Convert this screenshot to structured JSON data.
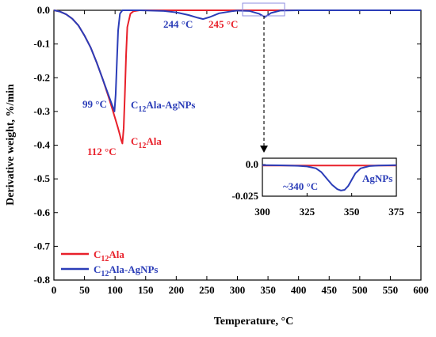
{
  "chart_data": {
    "type": "line",
    "xlabel": "Temperature, °C",
    "ylabel": "Derivative weight, %/min",
    "xlim": [
      0,
      600
    ],
    "ylim": [
      -0.8,
      0.0
    ],
    "xticks": [
      "0",
      "50",
      "100",
      "150",
      "200",
      "250",
      "300",
      "350",
      "400",
      "450",
      "500",
      "550",
      "600"
    ],
    "yticks": [
      "0.0",
      "-0.1",
      "-0.2",
      "-0.3",
      "-0.4",
      "-0.5",
      "-0.6",
      "-0.7",
      "-0.8"
    ],
    "series": [
      {
        "name": "C12Ala",
        "color": "#e8202a",
        "x": [
          0,
          10,
          20,
          30,
          40,
          50,
          60,
          70,
          80,
          90,
          95,
          100,
          105,
          108,
          110,
          112,
          114,
          116,
          118,
          120,
          125,
          130,
          140,
          160,
          200,
          245,
          300,
          400,
          500,
          600
        ],
        "y": [
          0.0,
          -0.004,
          -0.012,
          -0.025,
          -0.045,
          -0.075,
          -0.11,
          -0.155,
          -0.205,
          -0.26,
          -0.29,
          -0.32,
          -0.35,
          -0.37,
          -0.385,
          -0.395,
          -0.35,
          -0.25,
          -0.13,
          -0.05,
          -0.01,
          -0.003,
          0.0,
          0.0,
          0.0,
          0.0,
          0.0,
          0.0,
          0.0,
          0.0
        ]
      },
      {
        "name": "C12Ala-AgNPs",
        "color": "#2b3db8",
        "x": [
          0,
          10,
          20,
          30,
          40,
          50,
          60,
          70,
          80,
          90,
          95,
          97,
          99,
          101,
          103,
          105,
          108,
          112,
          120,
          140,
          180,
          200,
          220,
          235,
          244,
          255,
          270,
          290,
          300,
          320,
          335,
          345,
          355,
          370,
          400,
          500,
          600
        ],
        "y": [
          0.0,
          -0.004,
          -0.012,
          -0.025,
          -0.045,
          -0.075,
          -0.11,
          -0.155,
          -0.205,
          -0.255,
          -0.28,
          -0.29,
          -0.3,
          -0.25,
          -0.15,
          -0.06,
          -0.01,
          0.0,
          0.0,
          0.0,
          -0.002,
          -0.006,
          -0.014,
          -0.022,
          -0.026,
          -0.02,
          -0.009,
          -0.003,
          -0.001,
          -0.002,
          -0.01,
          -0.02,
          -0.008,
          -0.001,
          0.0,
          0.0,
          0.0
        ]
      }
    ],
    "annotations": {
      "t99": "99 °C",
      "t112": "112 °C",
      "t244": "244 °C",
      "t245": "245 °C",
      "label_agnps_series": "C12Ala-AgNPs",
      "label_ala_series": "C12Ala"
    },
    "legend": {
      "position": "bottom-left",
      "entries": [
        {
          "sym": "C",
          "sub": "12",
          "rest": "Ala",
          "color": "#e8202a"
        },
        {
          "sym": "C",
          "sub": "12",
          "rest": "Ala-AgNPs",
          "color": "#2b3db8"
        }
      ]
    },
    "inset": {
      "xlim": [
        300,
        375
      ],
      "ylim": [
        -0.025,
        0.0
      ],
      "xticks": [
        "300",
        "325",
        "350",
        "375"
      ],
      "yticks": [
        "0.0",
        "-0.025"
      ],
      "annotation_temp": "~340 °C",
      "annotation_label": "AgNPs",
      "series": [
        {
          "name": "C12Ala",
          "color": "#e8202a",
          "x": [
            300,
            375
          ],
          "y": [
            -0.0008,
            -0.0008
          ]
        },
        {
          "name": "C12Ala-AgNPs",
          "color": "#2b3db8",
          "x": [
            300,
            310,
            320,
            325,
            330,
            333,
            336,
            339,
            342,
            344,
            346,
            348,
            350,
            352,
            355,
            360,
            365,
            375
          ],
          "y": [
            -0.0005,
            -0.0006,
            -0.001,
            -0.0015,
            -0.003,
            -0.006,
            -0.011,
            -0.016,
            -0.0195,
            -0.0205,
            -0.02,
            -0.017,
            -0.012,
            -0.007,
            -0.003,
            -0.0012,
            -0.0008,
            -0.0005
          ]
        }
      ]
    }
  }
}
